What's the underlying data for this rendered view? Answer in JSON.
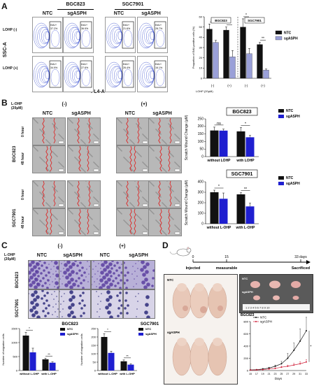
{
  "panels": {
    "A": "A",
    "B": "B",
    "C": "C",
    "D": "D"
  },
  "panelA": {
    "groups": [
      "BGC823",
      "SGC7901"
    ],
    "cols": [
      "NTC",
      "sgASPH",
      "NTC",
      "sgASPH"
    ],
    "rows": [
      "LOHP (-)",
      "LOHP (+)"
    ],
    "y_axis": "SSC-A",
    "x_axis": "FL4-A",
    "gates": [
      [
        "EdU+\n37.2%",
        "EdU+\n36.9%",
        "EdU+\n21.6%",
        "EdU+\n28.7%"
      ],
      [
        "EdU+\n34.9%",
        "EdU+\n27.6%",
        "EdU+\n26.4%",
        "EdU+\n16.1%"
      ]
    ]
  },
  "panelB": {
    "treatment_label": "L-OHP\n(20μM)",
    "conditions": [
      "(-)",
      "(+)"
    ],
    "cols": [
      "NTC",
      "sgASPH",
      "NTC",
      "sgASPH"
    ],
    "cell_lines": [
      "BGC823",
      "SGC7901"
    ],
    "times": [
      "0 hour",
      "48 hour"
    ]
  },
  "panelC": {
    "treatment_label": "L-OHP\n(20μM)",
    "conditions": [
      "(-)",
      "(+)"
    ],
    "cols": [
      "NTC",
      "sgASPH",
      "NTC",
      "sgASPH"
    ],
    "cell_lines": [
      "BGC823",
      "SGC7901"
    ]
  },
  "panelD": {
    "timeline": {
      "t0": "0",
      "t1": "15",
      "t2": "33 days",
      "labels": [
        "Injected",
        "measurable",
        "Sacrificed"
      ]
    },
    "photo_labels": [
      "NTC",
      "sgASPH",
      "NTC",
      "sgASPH"
    ],
    "ruler_text": "1  2  3  4  5  6  7  8  9  10"
  },
  "colors": {
    "ntc": "#111111",
    "sg_blue": "#1f1fd0",
    "sg_lavender": "#9aa0d8",
    "sig": "#d0203a"
  },
  "chart_data": [
    {
      "id": "A-bar",
      "type": "bar",
      "groups": [
        "BGC823",
        "SGC7901"
      ],
      "categories": [
        "(-)",
        "(+)",
        "(-)",
        "(+)"
      ],
      "xlabel": "LOHP (20μM)",
      "ylabel": "Proportion of EdU-positive cells (%)",
      "ylim": [
        0,
        60
      ],
      "yticks": [
        0,
        10,
        20,
        30,
        40,
        50,
        60
      ],
      "legend": [
        "NTC",
        "sgASPH"
      ],
      "series": [
        {
          "name": "NTC",
          "values": [
            48,
            47,
            50,
            33
          ]
        },
        {
          "name": "sgASPH",
          "values": [
            35,
            21,
            24,
            8
          ]
        }
      ],
      "errors": [
        [
          5,
          3,
          8,
          2
        ],
        [
          2,
          6,
          5,
          1
        ]
      ],
      "sig": [
        "ns",
        "*",
        "*",
        "**"
      ]
    },
    {
      "id": "B-bgc",
      "type": "bar",
      "title": "BGC823",
      "categories": [
        "without LOHP",
        "with LOHP"
      ],
      "ylabel": "Scratch Wound Change (μM)",
      "ylim": [
        0,
        250
      ],
      "yticks": [
        0,
        50,
        100,
        150,
        200,
        250
      ],
      "legend": [
        "NTC",
        "sgASPH"
      ],
      "series": [
        {
          "name": "NTC",
          "values": [
            173,
            167
          ]
        },
        {
          "name": "sgASPH",
          "values": [
            172,
            128
          ]
        }
      ],
      "errors": [
        [
          22,
          25
        ],
        [
          10,
          12
        ]
      ],
      "sig": [
        "ns",
        "*"
      ]
    },
    {
      "id": "B-sgc",
      "type": "bar",
      "title": "SGC7901",
      "categories": [
        "without L-OHP",
        "with L-OHP"
      ],
      "ylabel": "Scratch Wound Change (μM)",
      "ylim": [
        0,
        400
      ],
      "yticks": [
        0,
        100,
        200,
        300,
        400
      ],
      "legend": [
        "NTC",
        "sgASPH"
      ],
      "series": [
        {
          "name": "NTC",
          "values": [
            300,
            280
          ]
        },
        {
          "name": "sgASPH",
          "values": [
            238,
            165
          ]
        }
      ],
      "errors": [
        [
          20,
          15
        ],
        [
          55,
          30
        ]
      ],
      "sig": [
        "*",
        "**"
      ]
    },
    {
      "id": "C-bgc",
      "type": "bar",
      "title": "BGC823",
      "categories": [
        "without L-OHP",
        "with L-OHP"
      ],
      "ylabel": "Number of migration cells",
      "ylim": [
        0,
        1500
      ],
      "yticks": [
        0,
        500,
        1000,
        1500
      ],
      "legend": [
        "NTC",
        "sgASPH"
      ],
      "series": [
        {
          "name": "NTC",
          "values": [
            1250,
            400
          ]
        },
        {
          "name": "sgASPH",
          "values": [
            650,
            280
          ]
        }
      ],
      "errors": [
        [
          120,
          40
        ],
        [
          150,
          30
        ]
      ],
      "sig": [
        "*",
        "**"
      ]
    },
    {
      "id": "C-sgc",
      "type": "bar",
      "title": "SGC7901",
      "categories": [
        "without L-OHP",
        "with L-OHP"
      ],
      "ylabel": "Number of migration cells",
      "ylim": [
        0,
        250
      ],
      "yticks": [
        0,
        50,
        100,
        150,
        200,
        250
      ],
      "legend": [
        "NTC",
        "sgASPH"
      ],
      "series": [
        {
          "name": "NTC",
          "values": [
            200,
            55
          ]
        },
        {
          "name": "sgASPH",
          "values": [
            105,
            35
          ]
        }
      ],
      "errors": [
        [
          20,
          8
        ],
        [
          10,
          5
        ]
      ],
      "sig": [
        "*",
        "**"
      ]
    },
    {
      "id": "D-growth",
      "type": "line",
      "title": "BGC823",
      "xlabel": "Days",
      "x": [
        15,
        17,
        19,
        21,
        23,
        25,
        27,
        29,
        31,
        33
      ],
      "ylim": [
        0,
        800
      ],
      "yticks": [
        0,
        200,
        400,
        600,
        800
      ],
      "legend": [
        "NTC",
        "sgASPH"
      ],
      "series": [
        {
          "name": "NTC",
          "values": [
            10,
            15,
            25,
            40,
            70,
            110,
            200,
            330,
            480,
            650
          ]
        },
        {
          "name": "sgASPH",
          "values": [
            8,
            10,
            15,
            25,
            35,
            55,
            70,
            90,
            110,
            140
          ]
        }
      ],
      "errors": [
        [
          5,
          5,
          10,
          15,
          20,
          40,
          80,
          120,
          200,
          220
        ],
        [
          3,
          4,
          5,
          8,
          10,
          15,
          20,
          30,
          35,
          40
        ]
      ],
      "sig": "*"
    }
  ]
}
